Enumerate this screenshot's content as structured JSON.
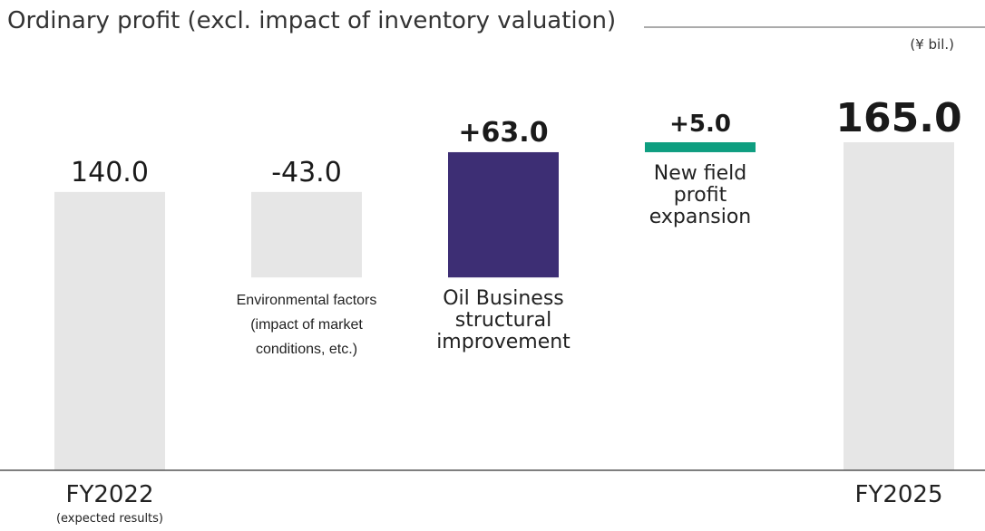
{
  "chart_data": {
    "type": "waterfall",
    "title": "Ordinary profit (excl. impact of inventory valuation)",
    "unit": "(¥ bil.)",
    "categories": [
      "FY2022",
      "Environmental factors (impact of market conditions, etc.)",
      "Oil Business structural improvement",
      "New field profit expansion",
      "FY2025"
    ],
    "category_notes": [
      "(expected results)",
      null,
      null,
      null,
      null
    ],
    "measure": [
      "absolute",
      "relative",
      "relative",
      "relative",
      "total"
    ],
    "values": [
      140.0,
      -43.0,
      63.0,
      5.0,
      165.0
    ],
    "value_labels": [
      "140.0",
      "-43.0",
      "+63.0",
      "+5.0",
      "165.0"
    ],
    "colors": [
      "#e6e6e6",
      "#e6e6e6",
      "#3d2e74",
      "#0e9e80",
      "#e6e6e6"
    ]
  }
}
